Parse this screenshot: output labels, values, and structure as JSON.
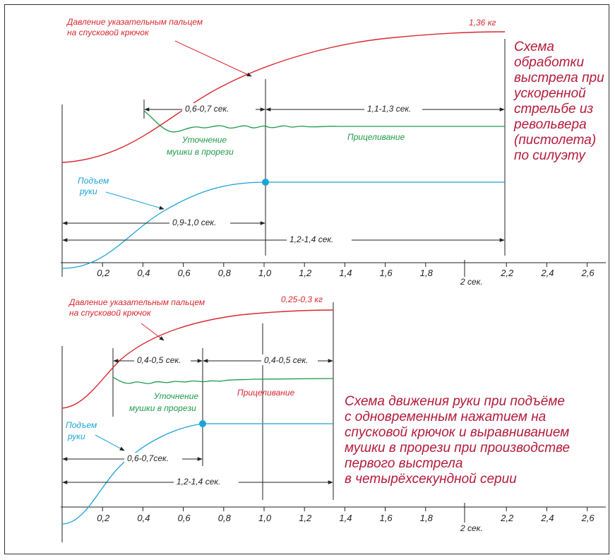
{
  "colors": {
    "pressure": "#d7282f",
    "aiming": "#1e9a4a",
    "arm": "#1aa3d9",
    "title": "#b31b3a",
    "ink": "#222222"
  },
  "top": {
    "title_lines": [
      "Схема",
      "обработки",
      "выстрела при",
      "ускоренной",
      "стрельбе из",
      "револьвера",
      "(пистолета)",
      "по силуэту"
    ],
    "pressure_label_lines": [
      "Давление указательным пальцем",
      "на спусковой крючок"
    ],
    "pressure_value": "1,36 кг",
    "aim_refine_lines": [
      "Уточнение",
      "мушки в прорези"
    ],
    "aiming_label": "Прицеливание",
    "arm_label_lines": [
      "Подъем",
      "руки"
    ],
    "intervals": {
      "a": "0,6-0,7 сек.",
      "b": "1,1-1,3 сек.",
      "c": "0,9-1,0 сек.",
      "d": "1,2-1,4 сек."
    },
    "ticks": [
      "0,2",
      "0,4",
      "0,6",
      "0,8",
      "1,0",
      "1,2",
      "1,4",
      "1,6",
      "1,8",
      "2,2",
      "2,4",
      "2,6"
    ],
    "two_sec_label": "2 сек."
  },
  "bottom": {
    "title_lines": [
      "Схема движения руки при подъёме",
      "с одновременным нажатием на",
      "спусковой крючок и выравниванием",
      "мушки в прорези при производстве",
      "первого выстрела",
      "в четырёхсекундной серии"
    ],
    "pressure_label_lines": [
      "Давление указательным пальцем",
      "на спусковой крючок"
    ],
    "pressure_value": "0,25-0,3 кг",
    "aim_refine_lines": [
      "Уточнение",
      "мушки в прорези"
    ],
    "aiming_label": "Прицеливание",
    "arm_label_lines": [
      "Подъем",
      "руки"
    ],
    "intervals": {
      "a": "0,4-0,5 сек.",
      "b": "0,4-0,5 сек.",
      "c": "0,6-0,7сек.",
      "d": "1,2-1,4 сек."
    },
    "ticks": [
      "0,2",
      "0,4",
      "0,6",
      "0,8",
      "1,0",
      "1,2",
      "1,4",
      "1,6",
      "1,8",
      "2,2",
      "2,4",
      "2,6"
    ],
    "two_sec_label": "2 сек."
  }
}
